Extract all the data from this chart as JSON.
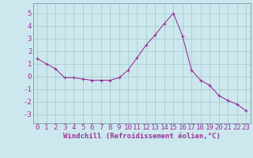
{
  "x": [
    0,
    1,
    2,
    3,
    4,
    5,
    6,
    7,
    8,
    9,
    10,
    11,
    12,
    13,
    14,
    15,
    16,
    17,
    18,
    19,
    20,
    21,
    22,
    23
  ],
  "y": [
    1.4,
    1.0,
    0.6,
    -0.1,
    -0.1,
    -0.2,
    -0.3,
    -0.3,
    -0.3,
    -0.1,
    0.5,
    1.5,
    2.5,
    3.3,
    4.2,
    5.0,
    3.2,
    0.5,
    -0.3,
    -0.7,
    -1.5,
    -1.9,
    -2.2,
    -2.7
  ],
  "line_color": "#993399",
  "marker": "+",
  "background_color": "#cce8ee",
  "grid_color": "#aacccc",
  "xlabel": "Windchill (Refroidissement éolien,°C)",
  "xlim": [
    -0.5,
    23.5
  ],
  "ylim": [
    -3.7,
    5.8
  ],
  "yticks": [
    -3,
    -2,
    -1,
    0,
    1,
    2,
    3,
    4,
    5
  ],
  "xticks": [
    0,
    1,
    2,
    3,
    4,
    5,
    6,
    7,
    8,
    9,
    10,
    11,
    12,
    13,
    14,
    15,
    16,
    17,
    18,
    19,
    20,
    21,
    22,
    23
  ],
  "label_color": "#993399",
  "tick_color": "#993399",
  "xlabel_fontsize": 6.5,
  "tick_fontsize": 6.5,
  "spine_color": "#7799aa"
}
